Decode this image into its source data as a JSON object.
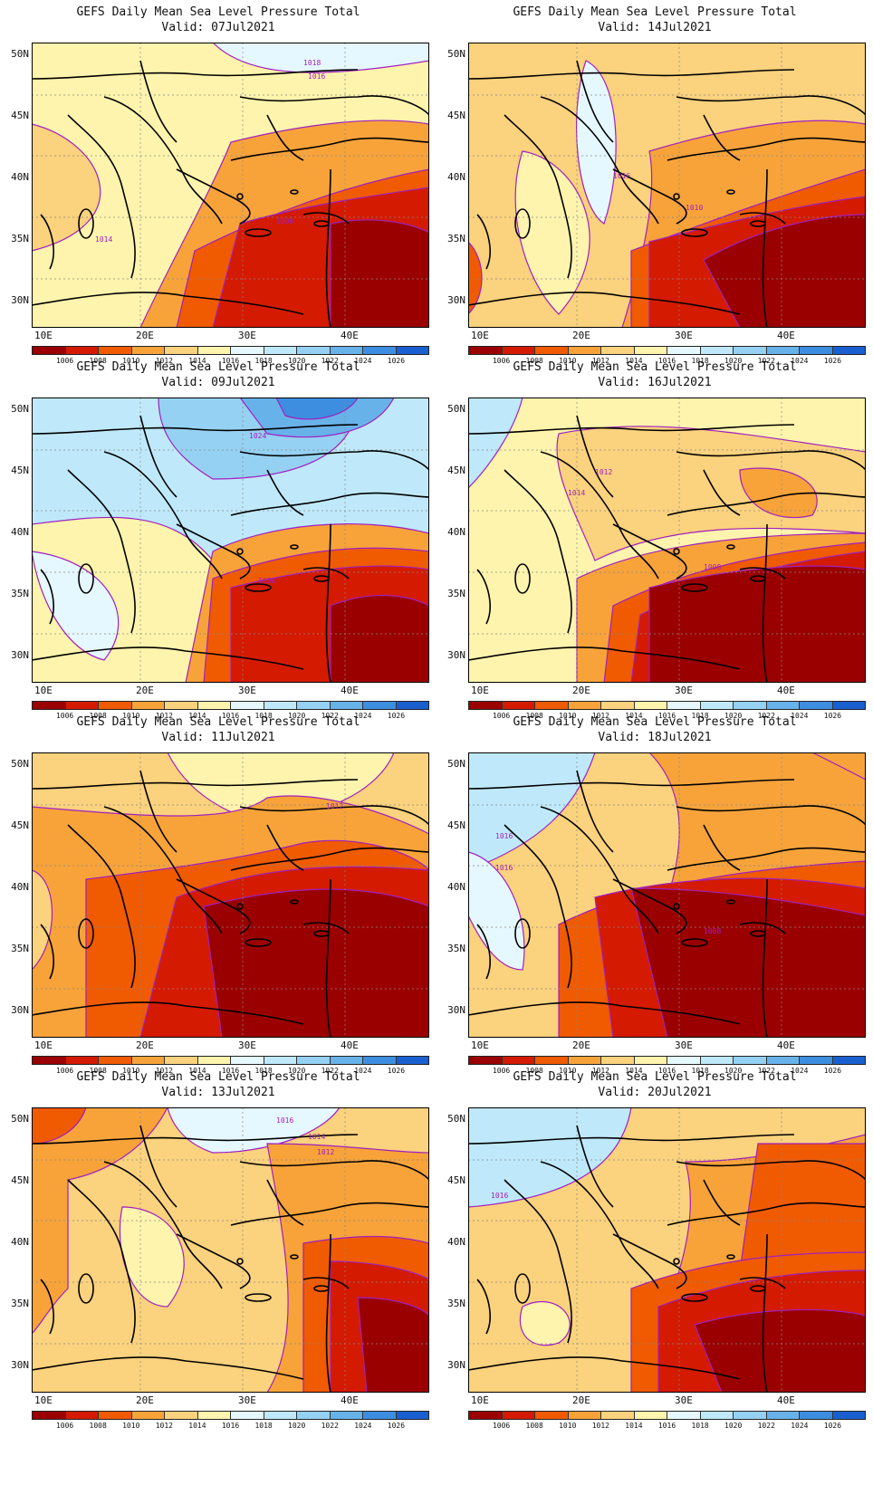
{
  "page": {
    "common_title": "GEFS Daily Mean Sea Level Pressure Total",
    "lat_labels": [
      "50N",
      "45N",
      "40N",
      "35N",
      "30N"
    ],
    "lon_labels": [
      "10E",
      "20E",
      "30E",
      "40E"
    ],
    "colorbar": {
      "labels": [
        "1006",
        "1008",
        "1010",
        "1012",
        "1014",
        "1016",
        "1018",
        "1020",
        "1022",
        "1024",
        "1026"
      ],
      "colors": [
        "#9b0000",
        "#d41a00",
        "#f05a00",
        "#f7a33a",
        "#fbd27d",
        "#fff4ad",
        "#e6f8ff",
        "#bfe9fa",
        "#95d1f2",
        "#68b2ea",
        "#3d8ee0",
        "#1a5fd0"
      ]
    }
  },
  "panels": [
    {
      "title": "GEFS Daily Mean Sea Level Pressure Total",
      "valid": "Valid: 07Jul2021",
      "contour_labels": [
        {
          "text": "1018"
        },
        {
          "text": "1016"
        },
        {
          "text": "1014"
        },
        {
          "text": "1008"
        }
      ]
    },
    {
      "title": "GEFS Daily Mean Sea Level Pressure Total",
      "valid": "Valid: 14Jul2021",
      "contour_labels": [
        {
          "text": "1016"
        },
        {
          "text": "1010"
        }
      ]
    },
    {
      "title": "GEFS Daily Mean Sea Level Pressure Total",
      "valid": "Valid: 09Jul2021",
      "contour_labels": [
        {
          "text": "1024"
        },
        {
          "text": "1008"
        }
      ]
    },
    {
      "title": "GEFS Daily Mean Sea Level Pressure Total",
      "valid": "Valid: 16Jul2021",
      "contour_labels": [
        {
          "text": "1012"
        },
        {
          "text": "1014"
        },
        {
          "text": "1008"
        }
      ]
    },
    {
      "title": "GEFS Daily Mean Sea Level Pressure Total",
      "valid": "Valid: 11Jul2021",
      "contour_labels": [
        {
          "text": "1012"
        }
      ]
    },
    {
      "title": "GEFS Daily Mean Sea Level Pressure Total",
      "valid": "Valid: 18Jul2021",
      "contour_labels": [
        {
          "text": "1016"
        },
        {
          "text": "1016"
        },
        {
          "text": "1008"
        }
      ]
    },
    {
      "title": "GEFS Daily Mean Sea Level Pressure Total",
      "valid": "Valid: 13Jul2021",
      "contour_labels": [
        {
          "text": "1016"
        },
        {
          "text": "1014"
        },
        {
          "text": "1012"
        }
      ]
    },
    {
      "title": "GEFS Daily Mean Sea Level Pressure Total",
      "valid": "Valid: 20Jul2021",
      "contour_labels": [
        {
          "text": "1016"
        }
      ]
    }
  ]
}
